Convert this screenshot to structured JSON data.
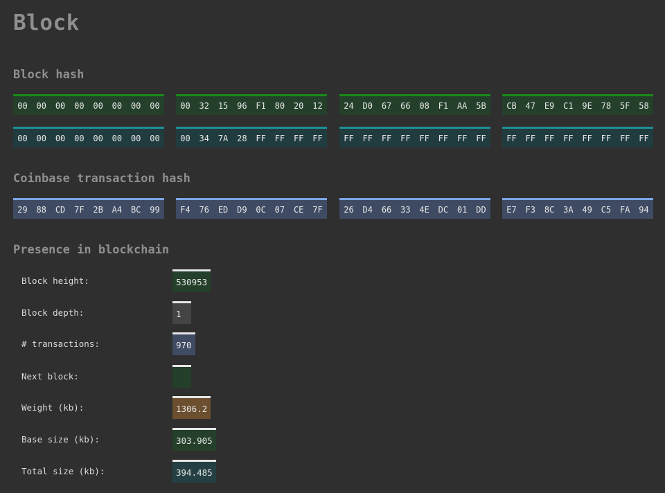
{
  "title": "Block",
  "block_hash": {
    "heading": "Block hash",
    "hash_groups": [
      [
        "00",
        "00",
        "00",
        "00",
        "00",
        "00",
        "00",
        "00"
      ],
      [
        "00",
        "32",
        "15",
        "96",
        "F1",
        "80",
        "20",
        "12"
      ],
      [
        "24",
        "D0",
        "67",
        "66",
        "08",
        "F1",
        "AA",
        "5B"
      ],
      [
        "CB",
        "47",
        "E9",
        "C1",
        "9E",
        "78",
        "5F",
        "58"
      ]
    ],
    "target_groups": [
      [
        "00",
        "00",
        "00",
        "00",
        "00",
        "00",
        "00",
        "00"
      ],
      [
        "00",
        "34",
        "7A",
        "28",
        "FF",
        "FF",
        "FF",
        "FF"
      ],
      [
        "FF",
        "FF",
        "FF",
        "FF",
        "FF",
        "FF",
        "FF",
        "FF"
      ],
      [
        "FF",
        "FF",
        "FF",
        "FF",
        "FF",
        "FF",
        "FF",
        "FF"
      ]
    ]
  },
  "coinbase": {
    "heading": "Coinbase transaction hash",
    "groups": [
      [
        "29",
        "88",
        "CD",
        "7F",
        "2B",
        "A4",
        "BC",
        "99"
      ],
      [
        "F4",
        "76",
        "ED",
        "D9",
        "0C",
        "07",
        "CE",
        "7F"
      ],
      [
        "26",
        "D4",
        "66",
        "33",
        "4E",
        "DC",
        "01",
        "DD"
      ],
      [
        "E7",
        "F3",
        "8C",
        "3A",
        "49",
        "C5",
        "FA",
        "94"
      ]
    ]
  },
  "presence": {
    "heading": "Presence in blockchain",
    "rows": [
      {
        "label": "Block height:",
        "value": "530953"
      },
      {
        "label": "Block depth:",
        "value": "1"
      },
      {
        "label": "# transactions:",
        "value": "970"
      },
      {
        "label": "Next block:",
        "value": ""
      },
      {
        "label": "Weight (kb):",
        "value": "1306.2"
      },
      {
        "label": "Base size (kb):",
        "value": "303.905"
      },
      {
        "label": "Total size (kb):",
        "value": "394.485"
      }
    ]
  },
  "colors": {
    "background": "#2f2f2f",
    "heading": "#8f8f8f",
    "green_accent": "#1a8a1a",
    "teal_accent": "#1e8f96",
    "blue_accent": "#7ea6e8",
    "gray_accent": "#9a9a9a",
    "orange_accent": "#e49a24",
    "aqua_accent": "#3cbfc4"
  }
}
